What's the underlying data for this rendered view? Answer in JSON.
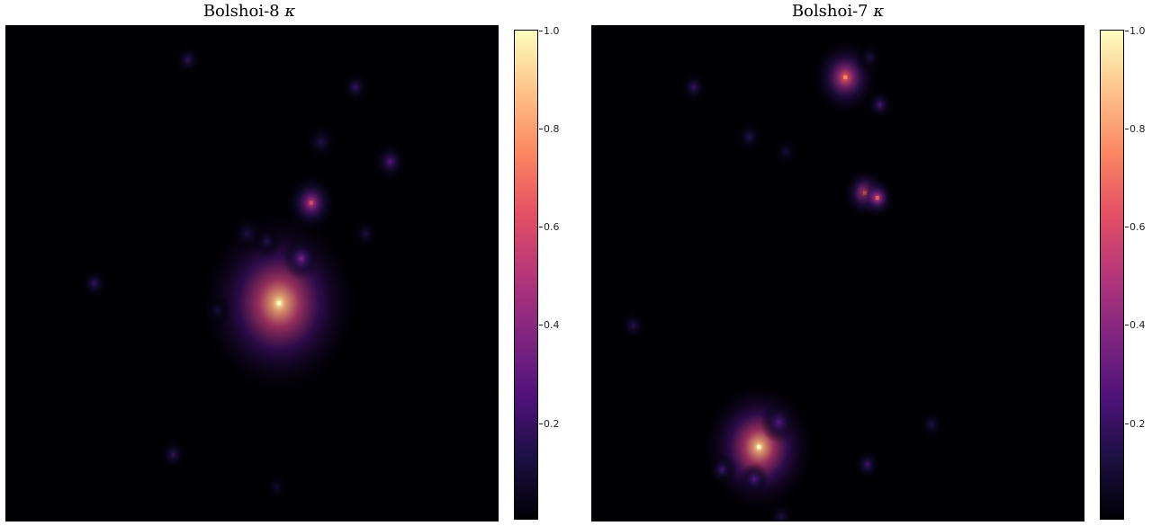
{
  "colorbar": {
    "ticks": [
      "1.0",
      "0.8",
      "0.6",
      "0.4",
      "0.2"
    ],
    "tick_values": [
      1.0,
      0.8,
      0.6,
      0.4,
      0.2
    ],
    "range": [
      0,
      1
    ],
    "colormap": "magma",
    "colors": [
      "#000004",
      "#1c1044",
      "#4f127b",
      "#812581",
      "#b5367a",
      "#e55064",
      "#fb8761",
      "#fec287",
      "#fcfdbf"
    ]
  },
  "chart_data": [
    {
      "type": "heatmap",
      "title_text": "Bolshoi-8",
      "title_symbol": "κ",
      "vmin": 0,
      "vmax": 1,
      "peaks_note_units": "fraction of panel",
      "peaks": [
        {
          "x": 0.555,
          "y": 0.56,
          "value": 1.0,
          "spread": 0.1
        },
        {
          "x": 0.62,
          "y": 0.358,
          "value": 0.6,
          "spread": 0.03
        },
        {
          "x": 0.6,
          "y": 0.47,
          "value": 0.4,
          "spread": 0.02
        },
        {
          "x": 0.78,
          "y": 0.275,
          "value": 0.3,
          "spread": 0.02
        },
        {
          "x": 0.71,
          "y": 0.125,
          "value": 0.22,
          "spread": 0.015
        },
        {
          "x": 0.37,
          "y": 0.07,
          "value": 0.2,
          "spread": 0.015
        },
        {
          "x": 0.64,
          "y": 0.235,
          "value": 0.15,
          "spread": 0.02
        },
        {
          "x": 0.49,
          "y": 0.42,
          "value": 0.14,
          "spread": 0.02
        },
        {
          "x": 0.53,
          "y": 0.435,
          "value": 0.15,
          "spread": 0.015
        },
        {
          "x": 0.18,
          "y": 0.52,
          "value": 0.22,
          "spread": 0.015
        },
        {
          "x": 0.34,
          "y": 0.865,
          "value": 0.22,
          "spread": 0.015
        },
        {
          "x": 0.43,
          "y": 0.575,
          "value": 0.12,
          "spread": 0.015
        },
        {
          "x": 0.73,
          "y": 0.42,
          "value": 0.14,
          "spread": 0.015
        },
        {
          "x": 0.55,
          "y": 0.93,
          "value": 0.1,
          "spread": 0.012
        }
      ]
    },
    {
      "type": "heatmap",
      "title_text": "Bolshoi-7",
      "title_symbol": "κ",
      "vmin": 0,
      "vmax": 1,
      "peaks": [
        {
          "x": 0.34,
          "y": 0.85,
          "value": 1.0,
          "spread": 0.07
        },
        {
          "x": 0.515,
          "y": 0.105,
          "value": 0.75,
          "spread": 0.04
        },
        {
          "x": 0.555,
          "y": 0.338,
          "value": 0.7,
          "spread": 0.025
        },
        {
          "x": 0.58,
          "y": 0.348,
          "value": 0.65,
          "spread": 0.02
        },
        {
          "x": 0.38,
          "y": 0.8,
          "value": 0.3,
          "spread": 0.02
        },
        {
          "x": 0.33,
          "y": 0.915,
          "value": 0.3,
          "spread": 0.015
        },
        {
          "x": 0.265,
          "y": 0.895,
          "value": 0.25,
          "spread": 0.015
        },
        {
          "x": 0.56,
          "y": 0.885,
          "value": 0.25,
          "spread": 0.015
        },
        {
          "x": 0.585,
          "y": 0.16,
          "value": 0.28,
          "spread": 0.015
        },
        {
          "x": 0.208,
          "y": 0.125,
          "value": 0.22,
          "spread": 0.015
        },
        {
          "x": 0.32,
          "y": 0.225,
          "value": 0.18,
          "spread": 0.015
        },
        {
          "x": 0.085,
          "y": 0.605,
          "value": 0.18,
          "spread": 0.015
        },
        {
          "x": 0.69,
          "y": 0.805,
          "value": 0.15,
          "spread": 0.015
        },
        {
          "x": 0.565,
          "y": 0.065,
          "value": 0.15,
          "spread": 0.015
        },
        {
          "x": 0.395,
          "y": 0.255,
          "value": 0.12,
          "spread": 0.015
        },
        {
          "x": 0.385,
          "y": 0.99,
          "value": 0.15,
          "spread": 0.015
        }
      ]
    }
  ]
}
